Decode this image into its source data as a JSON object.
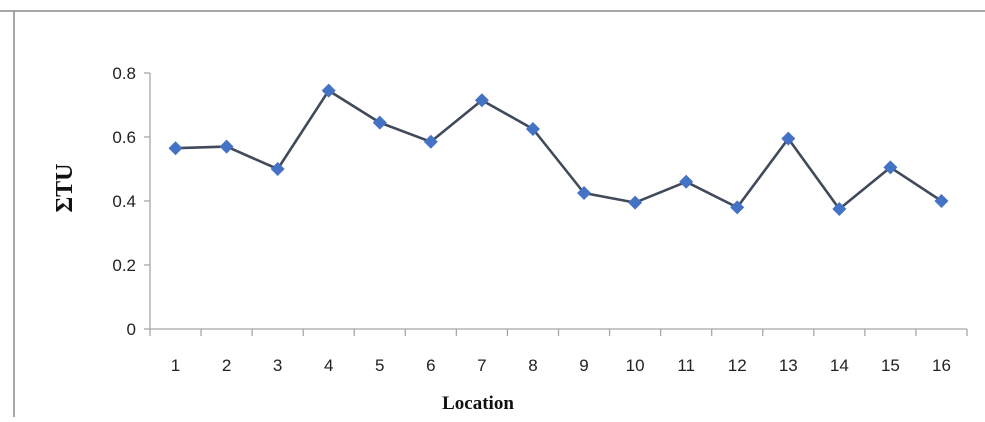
{
  "chart_data": {
    "type": "line",
    "title": "",
    "xlabel": "Location",
    "ylabel": "ΣTU",
    "categories": [
      "1",
      "2",
      "3",
      "4",
      "5",
      "6",
      "7",
      "8",
      "9",
      "10",
      "11",
      "12",
      "13",
      "14",
      "15",
      "16"
    ],
    "series": [
      {
        "values": [
          0.565,
          0.57,
          0.5,
          0.745,
          0.645,
          0.585,
          0.715,
          0.625,
          0.425,
          0.395,
          0.46,
          0.38,
          0.595,
          0.375,
          0.505,
          0.4
        ]
      }
    ],
    "ylim": [
      0,
      0.8
    ],
    "yticks": [
      "0",
      "0.2",
      "0.4",
      "0.6",
      "0.8"
    ],
    "grid": false,
    "legend": "none",
    "line_color": "#404a5a",
    "marker_color": "#4472c4",
    "axis_color": "#a6a6a6"
  }
}
